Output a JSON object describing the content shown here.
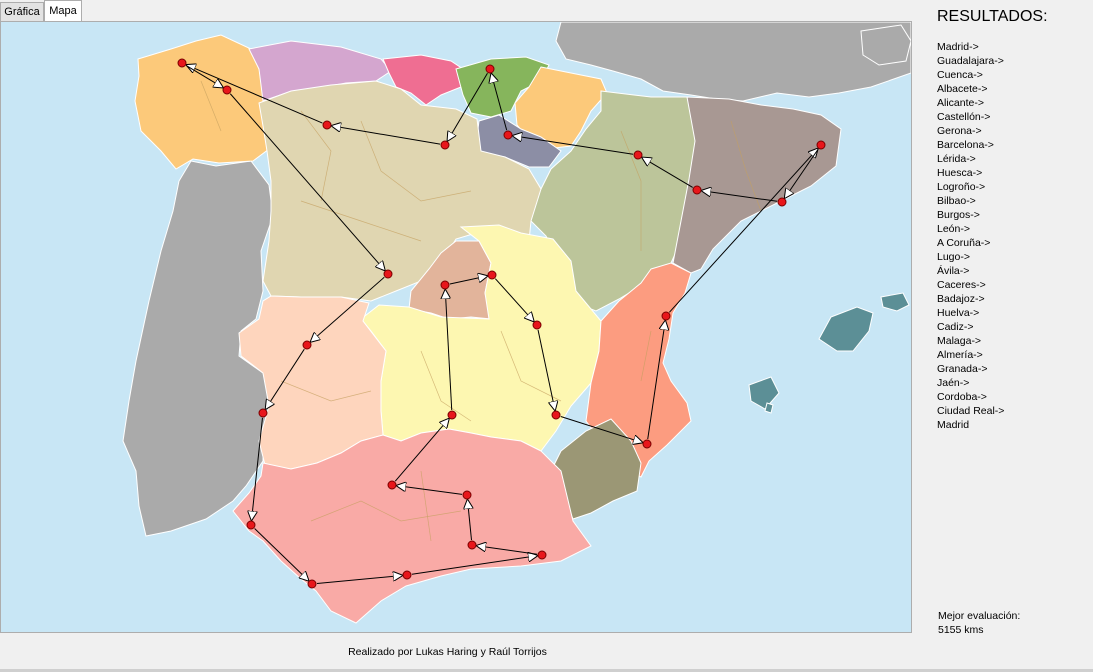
{
  "tabs": [
    {
      "label": "Gráfica",
      "active": false
    },
    {
      "label": "Mapa",
      "active": true
    }
  ],
  "results": {
    "title": "RESULTADOS:",
    "route": [
      "Madrid->",
      "Guadalajara->",
      "Cuenca->",
      "Albacete->",
      "Alicante->",
      "Castellón->",
      "Gerona->",
      "Barcelona->",
      "Lérida->",
      "Huesca->",
      "Logroño->",
      "Bilbao->",
      "Burgos->",
      "León->",
      "A Coruña->",
      "Lugo->",
      "Ávila->",
      "Caceres->",
      "Badajoz->",
      "Huelva->",
      "Cadiz->",
      "Malaga->",
      "Almería->",
      "Granada->",
      "Jaén->",
      "Cordoba->",
      "Ciudad Real->",
      "Madrid"
    ]
  },
  "best": {
    "label": "Mejor evaluación:",
    "value": "5155 kms"
  },
  "credit": "Realizado por Lukas Haring y Raúl Torrijos",
  "colors": {
    "sea": "#c8e6f5",
    "portugal": "#aaaaaa",
    "france": "#aaaaaa",
    "galicia": "#fcc97a",
    "asturias": "#d4a6cf",
    "cantabria": "#ef6e92",
    "pais_vasco": "#86b55c",
    "navarra": "#fcc97a",
    "castilla_leon": "#e0d6b1",
    "la_rioja": "#8c8ea5",
    "aragon": "#bcc59a",
    "cataluna": "#a89893",
    "madrid": "#e2b49b",
    "castilla_mancha": "#fdf7b1",
    "extremadura": "#fed5bd",
    "valencia": "#fc9c80",
    "murcia": "#9b9775",
    "andalucia": "#f9aaa6",
    "baleares": "#5c8f96",
    "city": "#e8161b"
  }
}
